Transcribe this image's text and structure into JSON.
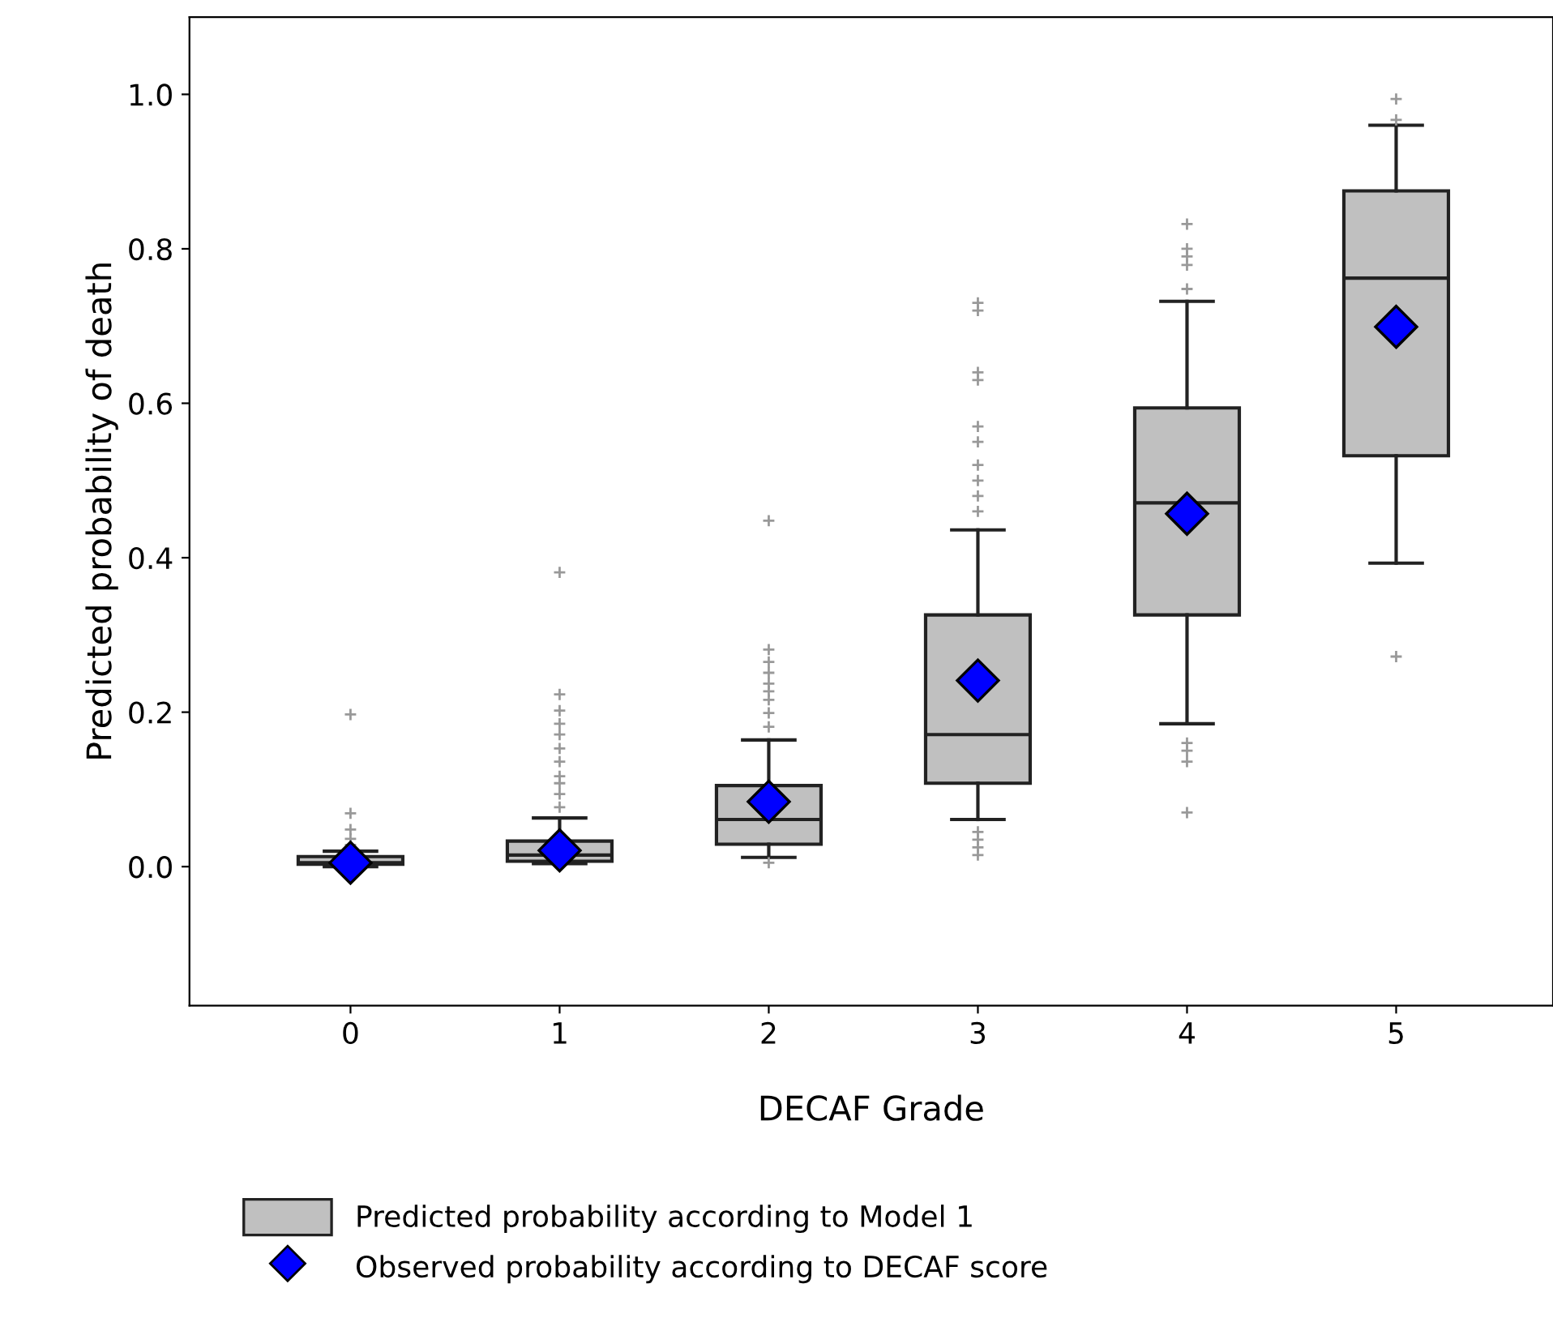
{
  "chart_data": {
    "type": "box",
    "xlabel": "DECAF Grade",
    "ylabel": "Predicted probability of death",
    "categories": [
      "0",
      "1",
      "2",
      "3",
      "4",
      "5"
    ],
    "ylim": [
      -0.18,
      1.1
    ],
    "yticks": [
      {
        "value": 0,
        "label": "0.0"
      },
      0.2,
      0.4,
      0.6,
      0.8,
      {
        "value": 1,
        "label": "1.0"
      }
    ],
    "grid": false,
    "legend": "bottom",
    "series": [
      {
        "name": "Predicted probability according to Model 1",
        "color": "#c0c0c0",
        "boxes": [
          {
            "low": 0.0,
            "q1": 0.003,
            "median": 0.005,
            "q3": 0.013,
            "high": 0.02,
            "outliers": [
              0.197,
              0.069,
              0.048,
              0.036,
              0.028
            ]
          },
          {
            "low": 0.004,
            "q1": 0.007,
            "median": 0.015,
            "q3": 0.033,
            "high": 0.063,
            "outliers": [
              0.381,
              0.223,
              0.202,
              0.185,
              0.171,
              0.153,
              0.136,
              0.117,
              0.108,
              0.094,
              0.077
            ]
          },
          {
            "low": 0.012,
            "q1": 0.029,
            "median": 0.061,
            "q3": 0.105,
            "high": 0.164,
            "outliers": [
              0.448,
              0.281,
              0.265,
              0.251,
              0.237,
              0.227,
              0.216,
              0.199,
              0.181,
              0.005
            ]
          },
          {
            "low": 0.061,
            "q1": 0.108,
            "median": 0.171,
            "q3": 0.326,
            "high": 0.436,
            "outliers": [
              0.73,
              0.72,
              0.64,
              0.63,
              0.57,
              0.55,
              0.52,
              0.5,
              0.48,
              0.46,
              0.045,
              0.035,
              0.025,
              0.015
            ]
          },
          {
            "low": 0.185,
            "q1": 0.326,
            "median": 0.471,
            "q3": 0.594,
            "high": 0.732,
            "outliers": [
              0.832,
              0.8,
              0.79,
              0.779,
              0.748,
              0.16,
              0.15,
              0.136,
              0.07
            ]
          },
          {
            "low": 0.393,
            "q1": 0.532,
            "median": 0.762,
            "q3": 0.875,
            "high": 0.96,
            "outliers": [
              0.994,
              0.967,
              0.272
            ]
          }
        ]
      },
      {
        "name": "Observed probability according to DECAF score",
        "type": "scatter",
        "color": "#0000ff",
        "marker": "diamond",
        "x": [
          "0",
          "1",
          "2",
          "3",
          "4",
          "5"
        ],
        "values": [
          0.005,
          0.021,
          0.084,
          0.241,
          0.457,
          0.699
        ]
      }
    ]
  }
}
